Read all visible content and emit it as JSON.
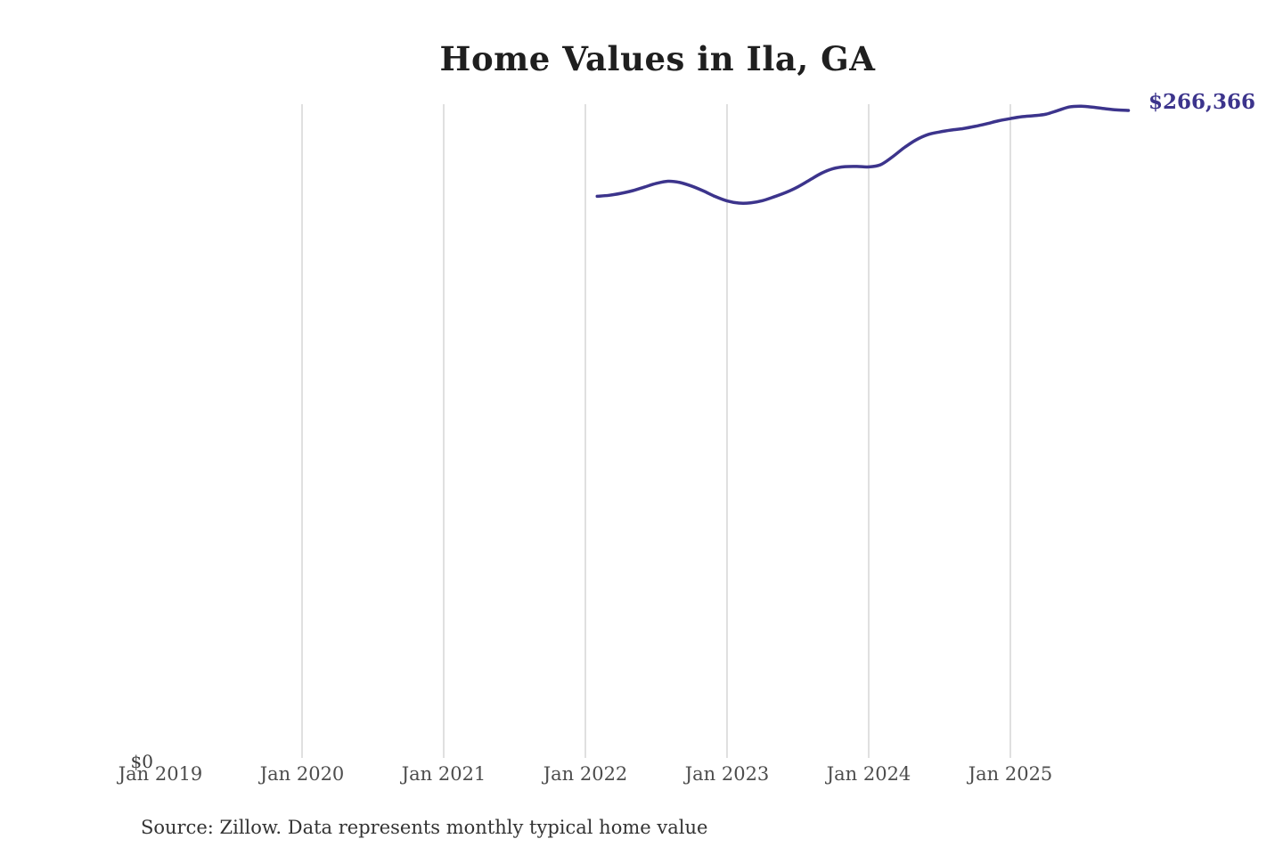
{
  "chart_data": {
    "type": "line",
    "title": "Home Values in Ila, GA",
    "source": "Source: Zillow. Data represents monthly typical home value",
    "end_label": "$266,366",
    "latest_value": 266366,
    "y_tick_label": "$0",
    "x_ticks": [
      "Jan 2019",
      "Jan 2020",
      "Jan 2021",
      "Jan 2022",
      "Jan 2023",
      "Jan 2024",
      "Jan 2025"
    ],
    "gridline_ticks": [
      "Jan 2020",
      "Jan 2021",
      "Jan 2022",
      "Jan 2023",
      "Jan 2024",
      "Jan 2025"
    ],
    "ylim": [
      0,
      280000
    ],
    "grid": "vertical-yearly",
    "legend": "none",
    "colors": {
      "line": "#3c348c",
      "value_label": "#3c348c",
      "grid": "#cccccc",
      "title": "#1f1f1f",
      "tick_label": "#4d4d4d",
      "source": "#333333"
    },
    "series": [
      {
        "name": "Monthly typical home value",
        "unit": "USD",
        "x": [
          "2022-02",
          "2022-03",
          "2022-04",
          "2022-05",
          "2022-06",
          "2022-07",
          "2022-08",
          "2022-09",
          "2022-10",
          "2022-11",
          "2022-12",
          "2023-01",
          "2023-02",
          "2023-03",
          "2023-04",
          "2023-05",
          "2023-06",
          "2023-07",
          "2023-08",
          "2023-09",
          "2023-10",
          "2023-11",
          "2023-12",
          "2024-01",
          "2024-02",
          "2024-03",
          "2024-04",
          "2024-05",
          "2024-06",
          "2024-07",
          "2024-08",
          "2024-09",
          "2024-10",
          "2024-11",
          "2024-12",
          "2025-01",
          "2025-02",
          "2025-03",
          "2025-04",
          "2025-05",
          "2025-06",
          "2025-07",
          "2025-08",
          "2025-09",
          "2025-10",
          "2025-11"
        ],
        "values": [
          231000,
          231400,
          232200,
          233300,
          234800,
          236300,
          237200,
          236700,
          235200,
          233200,
          230900,
          229100,
          228200,
          228300,
          229200,
          230800,
          232600,
          234900,
          237700,
          240500,
          242400,
          243200,
          243300,
          243100,
          244000,
          247200,
          251000,
          254200,
          256400,
          257500,
          258300,
          258900,
          259800,
          260900,
          262100,
          263000,
          263800,
          264200,
          264800,
          266300,
          267800,
          268100,
          267700,
          267100,
          266600,
          266366
        ]
      }
    ]
  }
}
